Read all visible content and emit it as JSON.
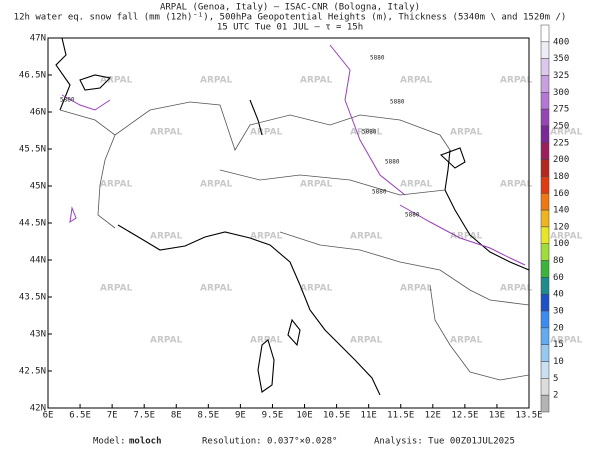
{
  "header": {
    "lines": [
      "ARPAL (Genoa, Italy)  –  ISAC-CNR (Bologna, Italy)",
      "12h water eq. snow fall (mm (12h)⁻¹), 500hPa Geopotential Heights (m), Thickness (5340m \\ and 1520m /)",
      "15 UTC Tue 01 JUL  –  τ = 15h"
    ]
  },
  "map": {
    "lat_labels": [
      "47N",
      "46.5N",
      "46N",
      "45.5N",
      "45N",
      "44.5N",
      "44N",
      "43.5N",
      "43N",
      "42.5N",
      "42N"
    ],
    "lon_labels": [
      "6E",
      "6.5E",
      "7E",
      "7.5E",
      "8E",
      "8.5E",
      "9E",
      "9.5E",
      "10E",
      "10.5E",
      "11E",
      "11.5E",
      "12E",
      "12.5E",
      "13E",
      "13.5E"
    ],
    "watermark": "ARPAL",
    "contour_label": "5880"
  },
  "colorbar": {
    "labels": [
      400,
      350,
      325,
      300,
      275,
      250,
      225,
      200,
      180,
      160,
      140,
      120,
      100,
      80,
      60,
      40,
      30,
      20,
      15,
      10,
      5,
      2
    ],
    "colors": [
      "#ffffff",
      "#ececf4",
      "#dcc8ec",
      "#c8a0e0",
      "#b478d4",
      "#9646b4",
      "#7a2a96",
      "#9c1e5a",
      "#b4281e",
      "#e03c14",
      "#f07814",
      "#f0b41e",
      "#e6e628",
      "#a0dc3c",
      "#3cb43c",
      "#1e8c8c",
      "#1e50c8",
      "#3c8cf0",
      "#64aaf0",
      "#96c8f0",
      "#c8e0f0",
      "#dcdcdc",
      "#b4b4b4"
    ]
  },
  "footer": {
    "model_label": "Model:",
    "model": "moloch",
    "resolution": "Resolution: 0.037°×0.028°",
    "analysis": "Analysis: Tue 00Z01JUL2025"
  }
}
